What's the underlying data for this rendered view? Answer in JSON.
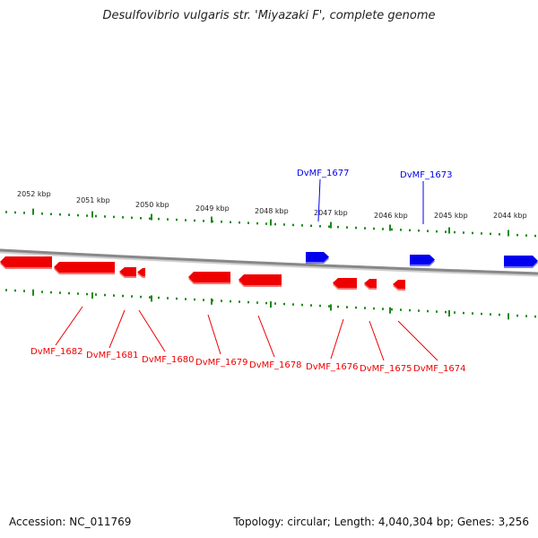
{
  "title": "Desulfovibrio vulgaris str. 'Miyazaki F', complete genome",
  "accession": "Accession: NC_011769",
  "summary": "Topology: circular; Length: 4,040,304 bp; Genes: 3,256",
  "colors": {
    "forward": "#0000ee",
    "reverse": "#ee0000",
    "tick": "#1a8a1a",
    "backbone": "#888888"
  },
  "scale_labels": [
    "2052 kbp",
    "2051 kbp",
    "2050 kbp",
    "2049 kbp",
    "2048 kbp",
    "2047 kbp",
    "2046 kbp",
    "2045 kbp",
    "2044 kbp"
  ],
  "genes_forward": [
    "DvMF_1677",
    "DvMF_1673"
  ],
  "genes_reverse": [
    "DvMF_1682",
    "DvMF_1681",
    "DvMF_1680",
    "DvMF_1679",
    "DvMF_1678",
    "DvMF_1676",
    "DvMF_1675",
    "DvMF_1674"
  ]
}
